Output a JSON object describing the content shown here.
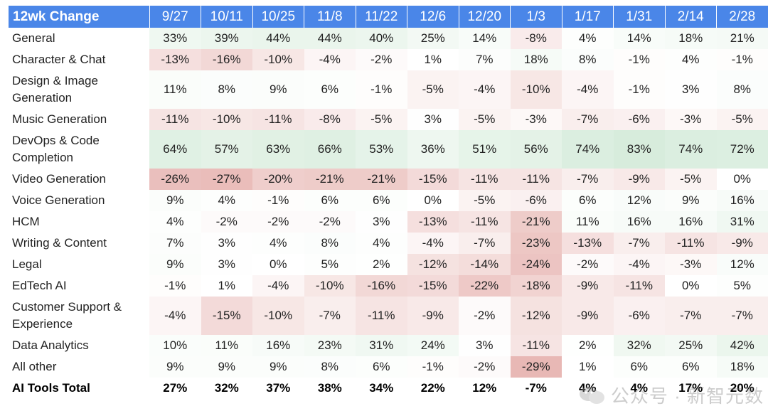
{
  "table": {
    "corner_label": "12wk Change",
    "columns": [
      "9/27",
      "10/11",
      "10/25",
      "11/8",
      "11/22",
      "12/6",
      "12/20",
      "1/3",
      "1/17",
      "1/31",
      "2/14",
      "2/28"
    ],
    "colors": {
      "header_bg": "#4a86e8",
      "positive": "#cfe8d4",
      "negative": "#e6a9a6"
    },
    "rows": [
      {
        "label": "General",
        "values": [
          33,
          39,
          44,
          44,
          40,
          25,
          14,
          -8,
          4,
          14,
          18,
          21
        ],
        "text": [
          "33%",
          "39%",
          "44%",
          "44%",
          "40%",
          "25%",
          "14%",
          "-8%",
          "4%",
          "14%",
          "18%",
          "21%"
        ]
      },
      {
        "label": "Character & Chat",
        "values": [
          -13,
          -16,
          -10,
          -4,
          -2,
          1,
          7,
          18,
          8,
          -1,
          4,
          -1
        ],
        "text": [
          "-13%",
          "-16%",
          "-10%",
          "-4%",
          "-2%",
          "1%",
          "7%",
          "18%",
          "8%",
          "-1%",
          "4%",
          "-1%"
        ]
      },
      {
        "label": "Design & Image Generation",
        "values": [
          11,
          8,
          9,
          6,
          -1,
          -5,
          -4,
          -10,
          -4,
          -1,
          3,
          8
        ],
        "text": [
          "11%",
          "8%",
          "9%",
          "6%",
          "-1%",
          "-5%",
          "-4%",
          "-10%",
          "-4%",
          "-1%",
          "3%",
          "8%"
        ]
      },
      {
        "label": "Music Generation",
        "values": [
          -11,
          -10,
          -11,
          -8,
          -5,
          3,
          -5,
          -3,
          -7,
          -6,
          -3,
          -5
        ],
        "text": [
          "-11%",
          "-10%",
          "-11%",
          "-8%",
          "-5%",
          "3%",
          "-5%",
          "-3%",
          "-7%",
          "-6%",
          "-3%",
          "-5%"
        ]
      },
      {
        "label": "DevOps & Code Completion",
        "values": [
          64,
          57,
          63,
          66,
          53,
          36,
          51,
          56,
          74,
          83,
          74,
          72
        ],
        "text": [
          "64%",
          "57%",
          "63%",
          "66%",
          "53%",
          "36%",
          "51%",
          "56%",
          "74%",
          "83%",
          "74%",
          "72%"
        ]
      },
      {
        "label": "Video Generation",
        "values": [
          -26,
          -27,
          -20,
          -21,
          -21,
          -15,
          -11,
          -11,
          -7,
          -9,
          -5,
          0
        ],
        "text": [
          "-26%",
          "-27%",
          "-20%",
          "-21%",
          "-21%",
          "-15%",
          "-11%",
          "-11%",
          "-7%",
          "-9%",
          "-5%",
          "0%"
        ]
      },
      {
        "label": "Voice Generation",
        "values": [
          9,
          4,
          -1,
          6,
          6,
          0,
          -5,
          -6,
          6,
          12,
          9,
          16
        ],
        "text": [
          "9%",
          "4%",
          "-1%",
          "6%",
          "6%",
          "0%",
          "-5%",
          "-6%",
          "6%",
          "12%",
          "9%",
          "16%"
        ]
      },
      {
        "label": "HCM",
        "values": [
          4,
          -2,
          -2,
          -2,
          3,
          -13,
          -11,
          -21,
          11,
          16,
          16,
          31
        ],
        "text": [
          "4%",
          "-2%",
          "-2%",
          "-2%",
          "3%",
          "-13%",
          "-11%",
          "-21%",
          "11%",
          "16%",
          "16%",
          "31%"
        ]
      },
      {
        "label": "Writing & Content",
        "values": [
          7,
          3,
          4,
          8,
          4,
          -4,
          -7,
          -23,
          -13,
          -7,
          -11,
          -9
        ],
        "text": [
          "7%",
          "3%",
          "4%",
          "8%",
          "4%",
          "-4%",
          "-7%",
          "-23%",
          "-13%",
          "-7%",
          "-11%",
          "-9%"
        ]
      },
      {
        "label": "Legal",
        "values": [
          9,
          3,
          0,
          5,
          2,
          -12,
          -14,
          -24,
          -2,
          -4,
          -3,
          12
        ],
        "text": [
          "9%",
          "3%",
          "0%",
          "5%",
          "2%",
          "-12%",
          "-14%",
          "-24%",
          "-2%",
          "-4%",
          "-3%",
          "12%"
        ]
      },
      {
        "label": "EdTech AI",
        "values": [
          -1,
          1,
          -4,
          -10,
          -16,
          -15,
          -22,
          -18,
          -9,
          -11,
          0,
          5
        ],
        "text": [
          "-1%",
          "1%",
          "-4%",
          "-10%",
          "-16%",
          "-15%",
          "-22%",
          "-18%",
          "-9%",
          "-11%",
          "0%",
          "5%"
        ]
      },
      {
        "label": "Customer Support & Experience",
        "values": [
          -4,
          -15,
          -10,
          -7,
          -11,
          -9,
          -2,
          -12,
          -9,
          -6,
          -7,
          -7
        ],
        "text": [
          "-4%",
          "-15%",
          "-10%",
          "-7%",
          "-11%",
          "-9%",
          "-2%",
          "-12%",
          "-9%",
          "-6%",
          "-7%",
          "-7%"
        ]
      },
      {
        "label": "Data Analytics",
        "values": [
          10,
          11,
          16,
          23,
          31,
          24,
          3,
          -11,
          2,
          32,
          25,
          42
        ],
        "text": [
          "10%",
          "11%",
          "16%",
          "23%",
          "31%",
          "24%",
          "3%",
          "-11%",
          "2%",
          "32%",
          "25%",
          "42%"
        ]
      },
      {
        "label": "All other",
        "values": [
          9,
          9,
          9,
          8,
          6,
          -1,
          -2,
          -29,
          1,
          6,
          6,
          18
        ],
        "text": [
          "9%",
          "9%",
          "9%",
          "8%",
          "6%",
          "-1%",
          "-2%",
          "-29%",
          "1%",
          "6%",
          "6%",
          "18%"
        ]
      },
      {
        "label": "AI Tools Total",
        "values": [
          27,
          32,
          37,
          38,
          34,
          22,
          12,
          -7,
          4,
          4,
          17,
          20
        ],
        "text": [
          "27%",
          "32%",
          "37%",
          "38%",
          "34%",
          "22%",
          "12%",
          "-7%",
          "4%",
          "4%",
          "17%",
          "20%"
        ],
        "bold": true
      }
    ]
  },
  "chart_data": {
    "type": "heatmap",
    "title": "12wk Change",
    "x": [
      "9/27",
      "10/11",
      "10/25",
      "11/8",
      "11/22",
      "12/6",
      "12/20",
      "1/3",
      "1/17",
      "1/31",
      "2/14",
      "2/28"
    ],
    "y": [
      "General",
      "Character & Chat",
      "Design & Image Generation",
      "Music Generation",
      "DevOps & Code Completion",
      "Video Generation",
      "Voice Generation",
      "HCM",
      "Writing & Content",
      "Legal",
      "EdTech AI",
      "Customer Support & Experience",
      "Data Analytics",
      "All other",
      "AI Tools Total"
    ],
    "unit": "%",
    "color_scale": {
      "negative": "#e6a9a6",
      "zero": "#ffffff",
      "positive": "#cfe8d4"
    }
  },
  "watermark": {
    "text": "公众号 · 新智元数",
    "icon": "wechat-logo-icon"
  }
}
